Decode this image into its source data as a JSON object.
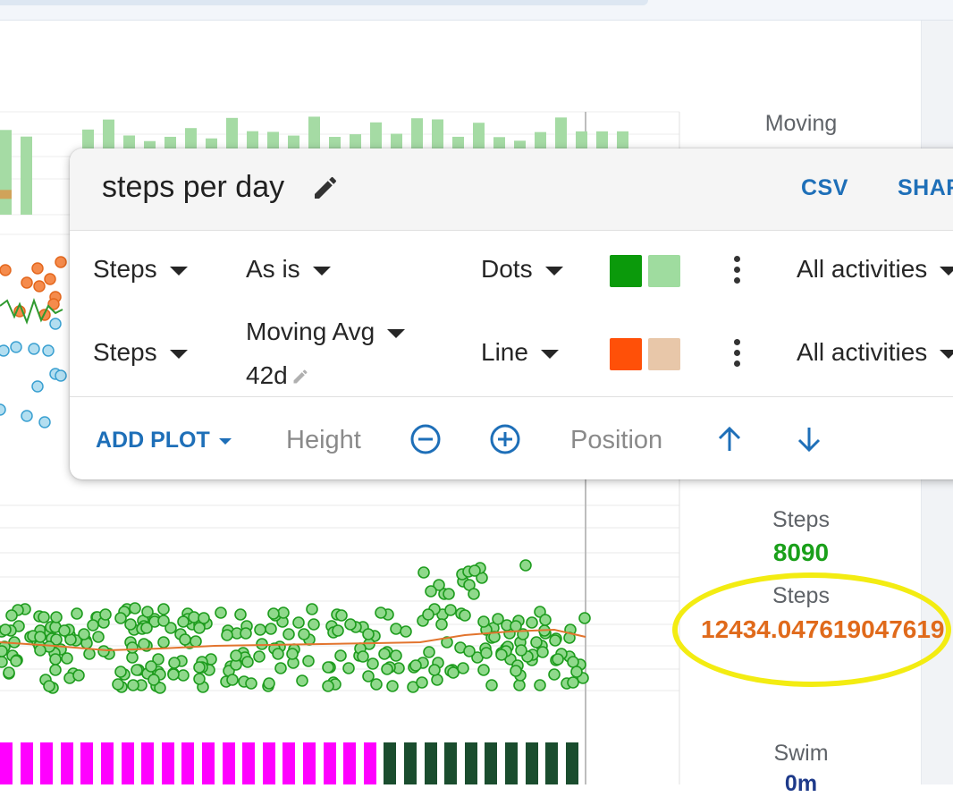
{
  "panel": {
    "title": "steps per day",
    "csv_label": "CSV",
    "share_label": "SHAR",
    "rows": [
      {
        "metric": "Steps",
        "transform": "As is",
        "style": "Dots",
        "colors": [
          "#0b9a0b",
          "#9fdc9f"
        ],
        "activities": "All activities"
      },
      {
        "metric": "Steps",
        "transform": "Moving Avg",
        "window": "42d",
        "style": "Line",
        "colors": [
          "#ff5008",
          "#e8c7a9"
        ],
        "activities": "All activities"
      }
    ],
    "footer": {
      "add_plot": "ADD PLOT",
      "height": "Height",
      "position": "Position"
    }
  },
  "stats": {
    "moving_label": "Moving",
    "steps_label": "Steps",
    "steps_value": "8090",
    "steps_avg_label": "Steps",
    "steps_avg_value": "12434.047619047619",
    "swim_label": "Swim",
    "swim_value": "0m"
  },
  "colors": {
    "accent": "#1e6fb8",
    "steps_green": "#1aa01a",
    "steps_avg_orange": "#e06a1b",
    "highlight_yellow": "#f3ec12",
    "magenta_bars": "#ff00ff",
    "dark_green_bars": "#1a4d2e"
  }
}
